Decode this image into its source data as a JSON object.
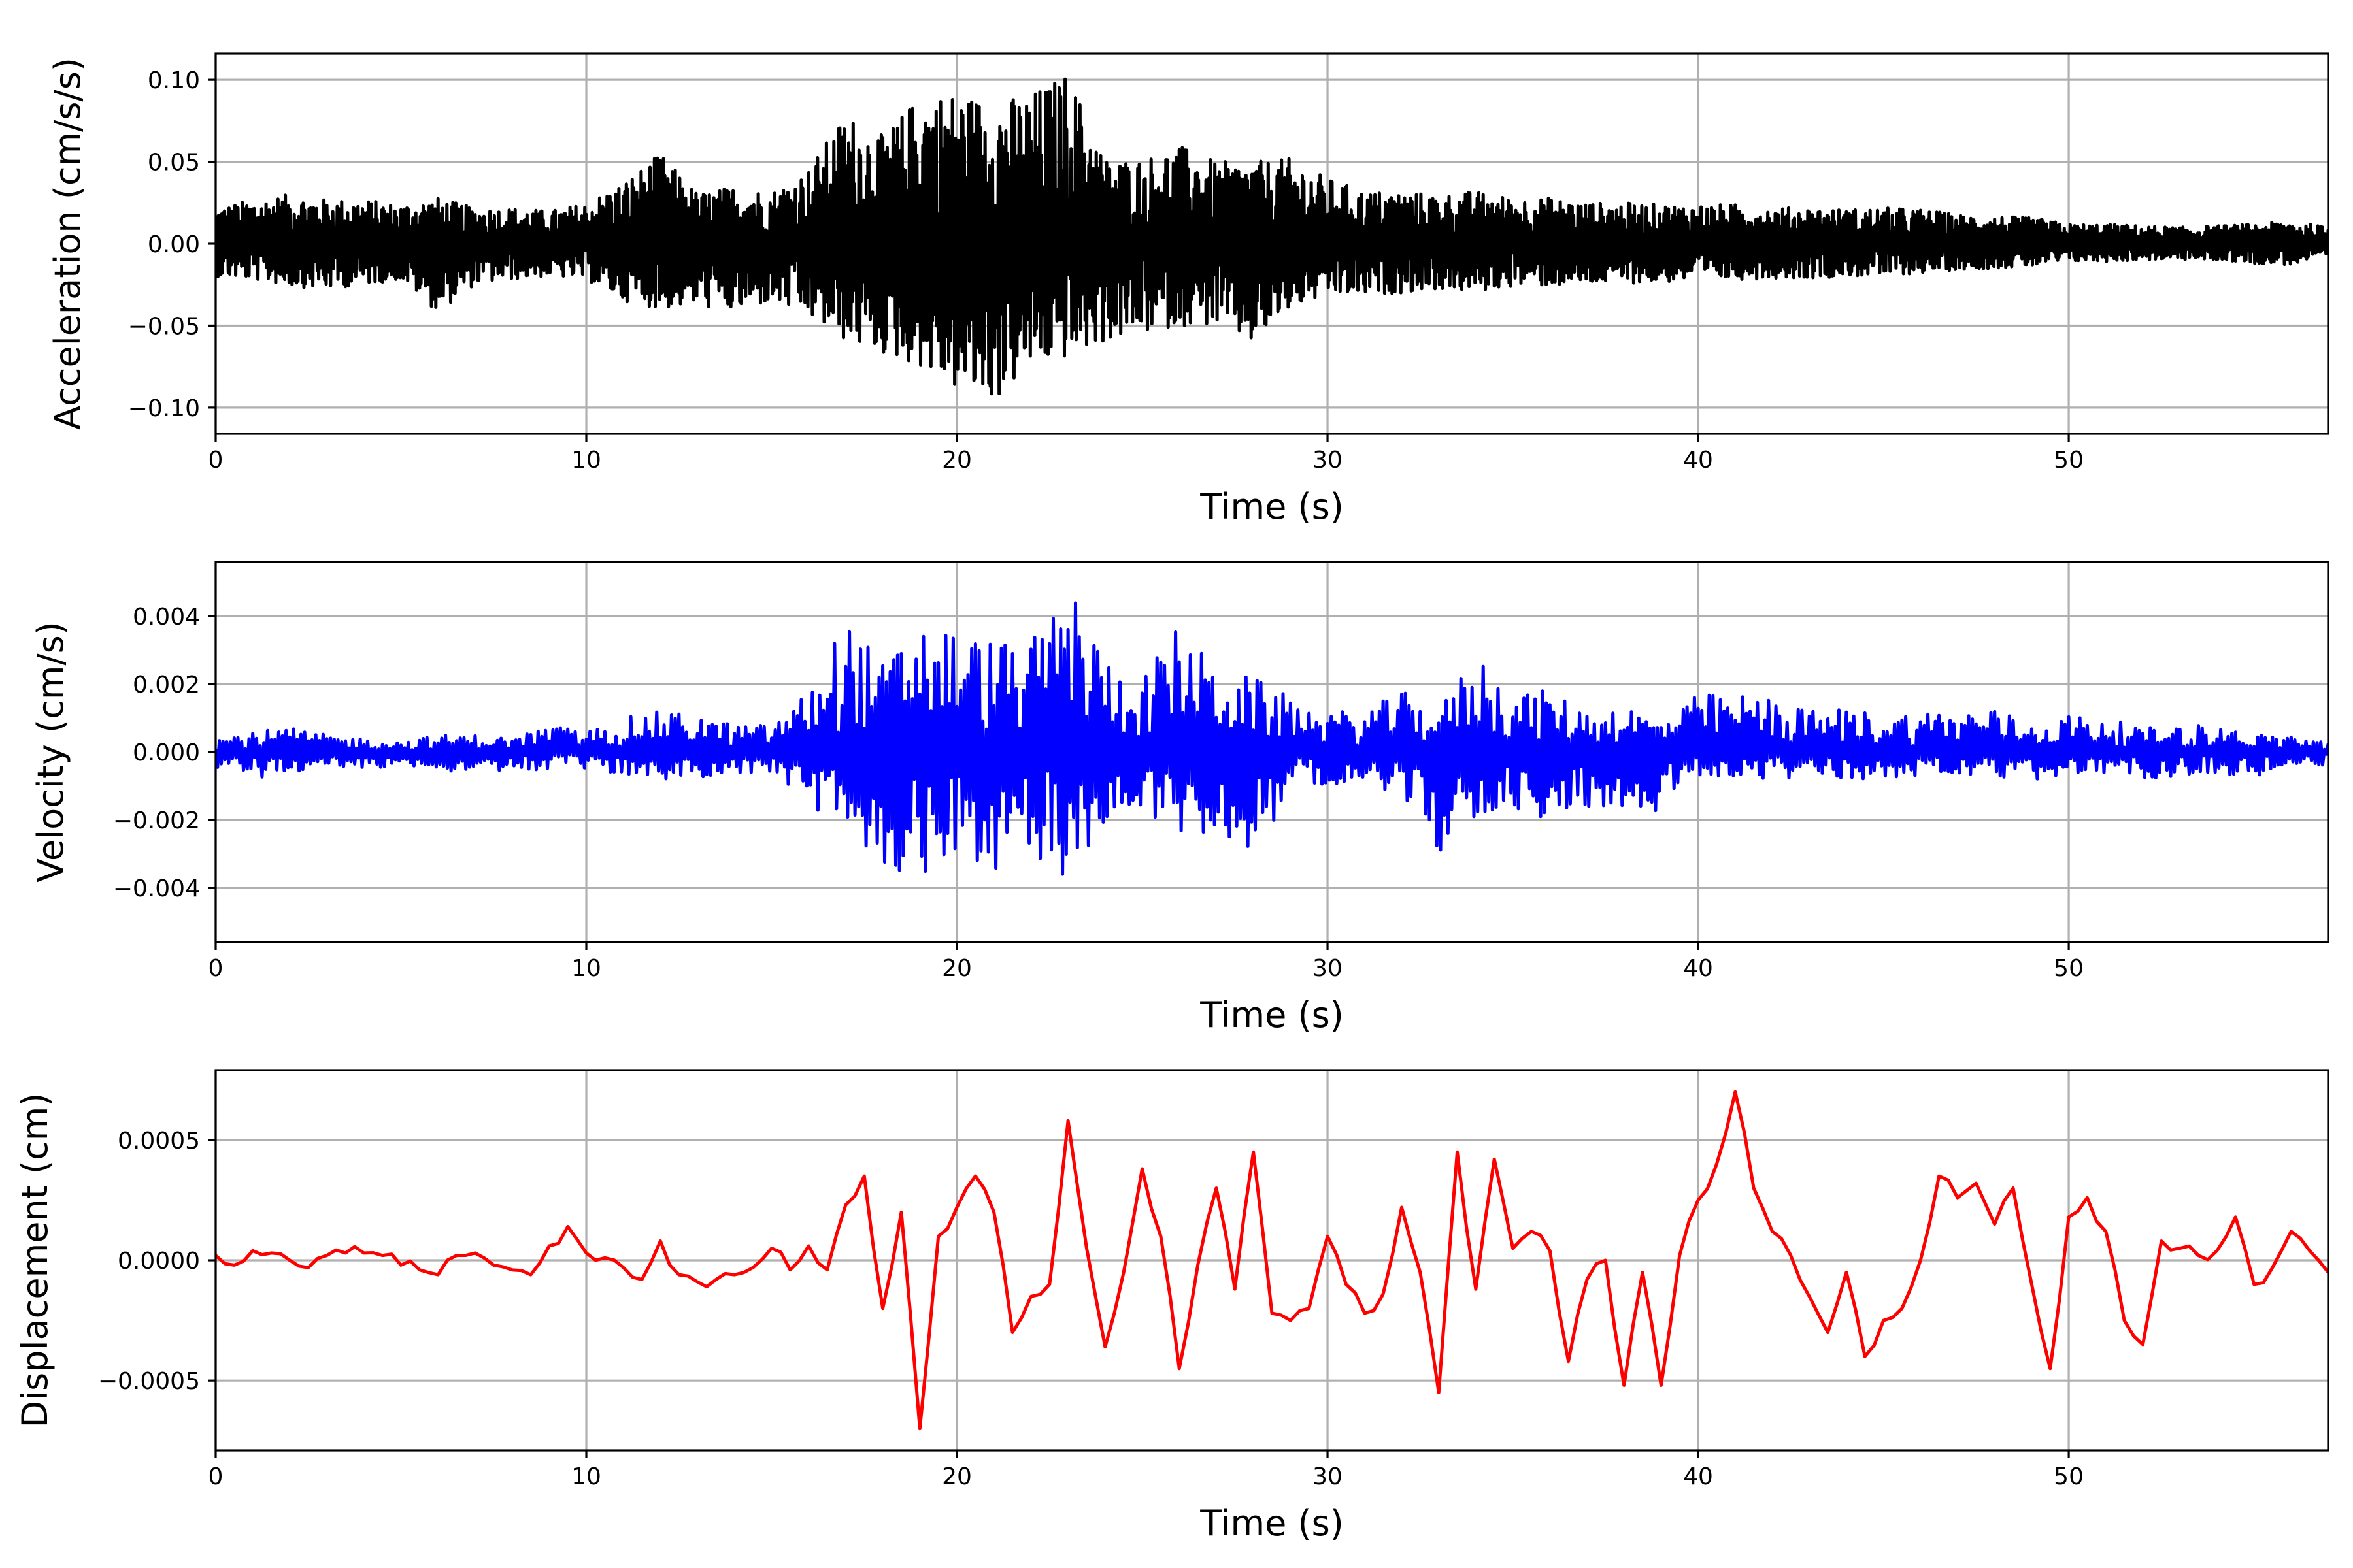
{
  "chart_data": [
    {
      "id": "acceleration",
      "type": "line",
      "xlabel": "Time (s)",
      "ylabel": "Acceleration (cm/s/s)",
      "xlim": [
        0,
        57
      ],
      "ylim": [
        -0.116,
        0.116
      ],
      "xticks": [
        0,
        10,
        20,
        30,
        40,
        50
      ],
      "xtick_labels": [
        "0",
        "10",
        "20",
        "30",
        "40",
        "50"
      ],
      "yticks": [
        -0.1,
        -0.05,
        0.0,
        0.05,
        0.1
      ],
      "ytick_labels": [
        "−0.10",
        "−0.05",
        "0.00",
        "0.05",
        "0.10"
      ],
      "grid": true,
      "color": "#000000",
      "x": [
        0,
        1,
        2,
        3,
        4,
        5,
        6,
        7,
        8,
        9,
        10,
        11,
        12,
        13,
        14,
        15,
        16,
        17,
        18,
        19,
        20,
        21,
        22,
        23,
        24,
        25,
        26,
        27,
        28,
        29,
        30,
        31,
        32,
        33,
        34,
        35,
        36,
        37,
        38,
        39,
        40,
        41,
        42,
        43,
        44,
        45,
        46,
        47,
        48,
        49,
        50,
        51,
        52,
        53,
        54,
        55,
        56,
        57
      ],
      "y": [
        0.022,
        0.027,
        0.03,
        0.027,
        0.027,
        0.024,
        0.028,
        0.022,
        0.022,
        0.02,
        0.025,
        0.038,
        0.055,
        0.031,
        0.035,
        0.032,
        0.046,
        0.08,
        0.066,
        0.091,
        0.093,
        0.087,
        0.092,
        0.105,
        0.052,
        0.052,
        0.06,
        0.05,
        0.05,
        0.052,
        0.04,
        0.032,
        0.032,
        0.03,
        0.032,
        0.028,
        0.028,
        0.025,
        0.025,
        0.024,
        0.024,
        0.024,
        0.022,
        0.022,
        0.021,
        0.022,
        0.021,
        0.018,
        0.017,
        0.016,
        0.012,
        0.012,
        0.011,
        0.01,
        0.011,
        0.012,
        0.014,
        0.01
      ],
      "y_min": [
        -0.02,
        -0.022,
        -0.026,
        -0.028,
        -0.025,
        -0.022,
        -0.042,
        -0.025,
        -0.022,
        -0.02,
        -0.022,
        -0.035,
        -0.04,
        -0.038,
        -0.042,
        -0.036,
        -0.045,
        -0.06,
        -0.068,
        -0.075,
        -0.09,
        -0.097,
        -0.075,
        -0.07,
        -0.06,
        -0.055,
        -0.05,
        -0.05,
        -0.062,
        -0.04,
        -0.032,
        -0.032,
        -0.03,
        -0.028,
        -0.03,
        -0.026,
        -0.026,
        -0.025,
        -0.024,
        -0.024,
        -0.022,
        -0.022,
        -0.021,
        -0.021,
        -0.02,
        -0.02,
        -0.018,
        -0.016,
        -0.015,
        -0.014,
        -0.011,
        -0.011,
        -0.01,
        -0.01,
        -0.01,
        -0.012,
        -0.013,
        -0.008
      ]
    },
    {
      "id": "velocity",
      "type": "line",
      "xlabel": "Time (s)",
      "ylabel": "Velocity (cm/s)",
      "xlim": [
        0,
        57
      ],
      "ylim": [
        -0.0056,
        0.0056
      ],
      "xticks": [
        0,
        10,
        20,
        30,
        40,
        50
      ],
      "xtick_labels": [
        "0",
        "10",
        "20",
        "30",
        "40",
        "50"
      ],
      "yticks": [
        -0.004,
        -0.002,
        0.0,
        0.002,
        0.004
      ],
      "ytick_labels": [
        "−0.004",
        "−0.002",
        "0.000",
        "0.002",
        "0.004"
      ],
      "grid": true,
      "color": "#0000ff",
      "x": [
        0,
        1,
        2,
        3,
        4,
        5,
        6,
        7,
        8,
        9,
        10,
        11,
        12,
        13,
        14,
        15,
        16,
        17,
        18,
        19,
        20,
        21,
        22,
        23,
        24,
        25,
        26,
        27,
        28,
        29,
        30,
        31,
        32,
        33,
        34,
        35,
        36,
        37,
        38,
        39,
        40,
        41,
        42,
        43,
        44,
        45,
        46,
        47,
        48,
        49,
        50,
        51,
        52,
        53,
        54,
        55,
        56,
        57
      ],
      "y": [
        0.0004,
        0.0006,
        0.0007,
        0.0005,
        0.0004,
        0.0003,
        0.0005,
        0.0005,
        0.0004,
        0.0008,
        0.0006,
        0.001,
        0.0012,
        0.0011,
        0.0008,
        0.0008,
        0.0018,
        0.004,
        0.0026,
        0.0039,
        0.0036,
        0.0033,
        0.0032,
        0.0051,
        0.0028,
        0.0022,
        0.0038,
        0.0024,
        0.0022,
        0.0016,
        0.0012,
        0.0012,
        0.0018,
        0.0012,
        0.003,
        0.0018,
        0.0018,
        0.0012,
        0.0014,
        0.0009,
        0.0017,
        0.0017,
        0.0016,
        0.0012,
        0.0013,
        0.0011,
        0.0012,
        0.0012,
        0.0013,
        0.0008,
        0.0011,
        0.001,
        0.0007,
        0.0008,
        0.0008,
        0.0005,
        0.0005,
        0.0003
      ],
      "y_min": [
        -0.0006,
        -0.0008,
        -0.0006,
        -0.0005,
        -0.0005,
        -0.0004,
        -0.0006,
        -0.0005,
        -0.0006,
        -0.0005,
        -0.0005,
        -0.0007,
        -0.0008,
        -0.0008,
        -0.0006,
        -0.0007,
        -0.0015,
        -0.0026,
        -0.0043,
        -0.0038,
        -0.0028,
        -0.0041,
        -0.0028,
        -0.0045,
        -0.002,
        -0.0018,
        -0.0025,
        -0.0024,
        -0.003,
        -0.0012,
        -0.0009,
        -0.0011,
        -0.0013,
        -0.003,
        -0.0019,
        -0.0018,
        -0.0021,
        -0.0016,
        -0.0016,
        -0.0019,
        -0.0007,
        -0.0008,
        -0.0008,
        -0.0008,
        -0.0008,
        -0.0008,
        -0.0007,
        -0.0007,
        -0.0009,
        -0.0009,
        -0.0006,
        -0.0008,
        -0.0008,
        -0.0007,
        -0.0006,
        -0.0008,
        -0.0004,
        -0.0004
      ]
    },
    {
      "id": "displacement",
      "type": "line",
      "xlabel": "Time (s)",
      "ylabel": "Displacement (cm)",
      "xlim": [
        0,
        57
      ],
      "ylim": [
        -0.00079,
        0.00079
      ],
      "xticks": [
        0,
        10,
        20,
        30,
        40,
        50
      ],
      "xtick_labels": [
        "0",
        "10",
        "20",
        "30",
        "40",
        "50"
      ],
      "yticks": [
        -0.0005,
        0.0,
        0.0005
      ],
      "ytick_labels": [
        "−0.0005",
        "0.0000",
        "0.0005"
      ],
      "grid": true,
      "color": "#ff0000",
      "x": [
        0,
        0.5,
        1,
        1.5,
        2,
        2.5,
        3,
        3.5,
        4,
        4.5,
        5,
        5.5,
        6,
        6.5,
        7,
        7.5,
        8,
        8.5,
        9,
        9.5,
        10,
        10.5,
        11,
        11.5,
        12,
        12.5,
        13,
        13.5,
        14,
        14.5,
        15,
        15.5,
        16,
        16.5,
        17,
        17.5,
        18,
        18.5,
        19,
        19.5,
        20,
        20.5,
        21,
        21.5,
        22,
        22.5,
        23,
        23.5,
        24,
        24.5,
        25,
        25.5,
        26,
        26.5,
        27,
        27.5,
        28,
        28.5,
        29,
        29.5,
        30,
        30.5,
        31,
        31.5,
        32,
        32.5,
        33,
        33.5,
        34,
        34.5,
        35,
        35.5,
        36,
        36.5,
        37,
        37.5,
        38,
        38.5,
        39,
        39.5,
        40,
        40.5,
        41,
        41.5,
        42,
        42.5,
        43,
        43.5,
        44,
        44.5,
        45,
        45.5,
        46,
        46.5,
        47,
        47.5,
        48,
        48.5,
        49,
        49.5,
        50,
        50.5,
        51,
        51.5,
        52,
        52.5,
        53,
        53.5,
        54,
        54.5,
        55,
        55.5,
        56,
        56.5,
        57
      ],
      "y": [
        2e-05,
        -2e-05,
        4e-05,
        3e-05,
        0.0,
        -3e-05,
        2e-05,
        3e-05,
        3e-05,
        2e-05,
        -2e-05,
        -4e-05,
        -6e-05,
        2e-05,
        3e-05,
        -2e-05,
        -4e-05,
        -6e-05,
        6e-05,
        0.00014,
        3e-05,
        1e-05,
        -3e-05,
        -8e-05,
        8e-05,
        -6e-05,
        -9e-05,
        -8e-05,
        -6e-05,
        -3e-05,
        5e-05,
        -4e-05,
        6e-05,
        -4e-05,
        0.00023,
        0.00035,
        -0.0002,
        0.0002,
        -0.0007,
        0.0001,
        0.00022,
        0.00035,
        0.0002,
        -0.0003,
        -0.00015,
        -0.0001,
        0.00058,
        5e-05,
        -0.00036,
        -5e-05,
        0.00038,
        0.0001,
        -0.00045,
        -2e-05,
        0.0003,
        -0.00012,
        0.00045,
        -0.00022,
        -0.00025,
        -0.0002,
        0.0001,
        -0.0001,
        -0.00022,
        -0.00014,
        0.00022,
        -5e-05,
        -0.00055,
        0.00045,
        -0.00012,
        0.00042,
        5e-05,
        0.00012,
        4e-05,
        -0.00042,
        -8e-05,
        0.0,
        -0.00052,
        -5e-05,
        -0.00052,
        2e-05,
        0.00025,
        0.0004,
        0.0007,
        0.0003,
        0.00012,
        2e-05,
        -0.00015,
        -0.0003,
        -5e-05,
        -0.0004,
        -0.00025,
        -0.0002,
        0.0,
        0.00035,
        0.00026,
        0.00032,
        0.00015,
        0.0003,
        -0.0001,
        -0.00045,
        0.00018,
        0.00026,
        0.00012,
        -0.00025,
        -0.00035,
        8e-05,
        5e-05,
        2e-05,
        4e-05,
        0.00018,
        -0.0001,
        -3e-05,
        0.00012,
        4e-05,
        -5e-05
      ]
    }
  ]
}
